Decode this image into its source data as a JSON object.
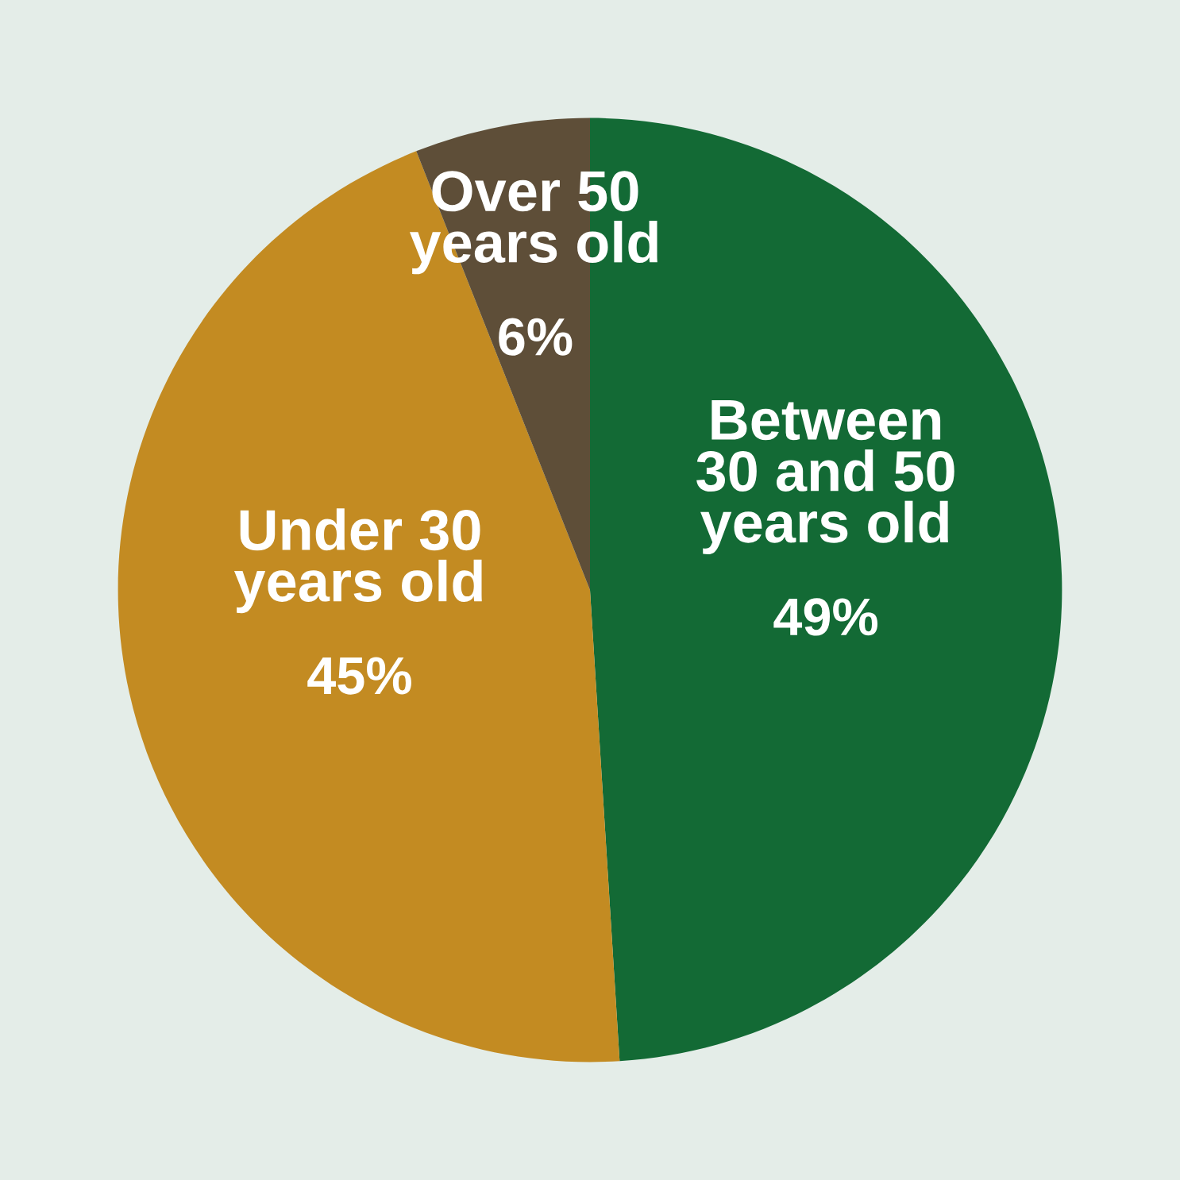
{
  "chart_data": {
    "type": "pie",
    "categories": [
      "Between\n30 and 50\nyears old",
      "Under 30\nyears old",
      "Over 50\nyears old"
    ],
    "values": [
      49,
      45,
      6
    ],
    "colors": [
      "#136a35",
      "#c38b22",
      "#5e4e38"
    ],
    "value_labels": [
      "49%",
      "45%",
      "6%"
    ]
  }
}
